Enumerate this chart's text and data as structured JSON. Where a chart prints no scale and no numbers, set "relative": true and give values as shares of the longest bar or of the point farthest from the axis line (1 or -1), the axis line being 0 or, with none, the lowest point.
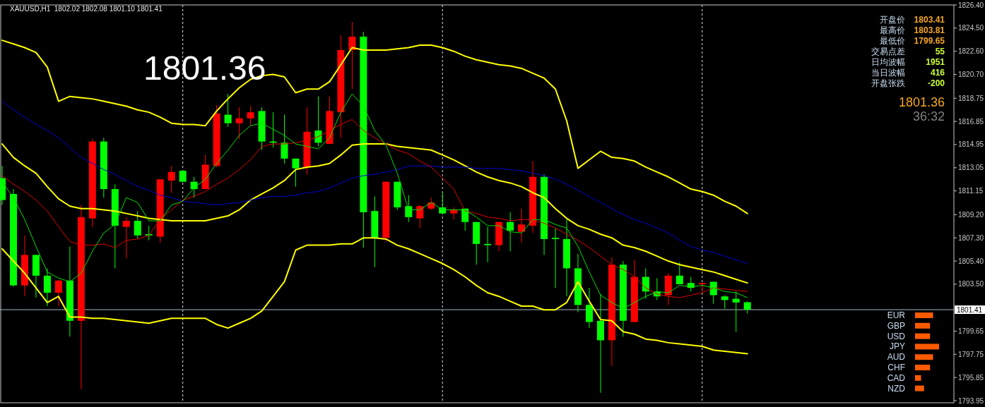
{
  "chart_data": [
    {
      "type": "candlestick",
      "title": "XAUUSD,H1  1802.02 1802.08 1801.10 1801.41",
      "categories": [
        null,
        null,
        null,
        null,
        null,
        null,
        null,
        null,
        null,
        null,
        null,
        null,
        null,
        null,
        null,
        null,
        null,
        null,
        null,
        null,
        null,
        null,
        null,
        null,
        null,
        null,
        null,
        null,
        null,
        null,
        null,
        null,
        null,
        null,
        null,
        null,
        null,
        null,
        null,
        null,
        null,
        null,
        null,
        null,
        null,
        null,
        null,
        null,
        null,
        null,
        null,
        null,
        null,
        null,
        null,
        null,
        null,
        null,
        null,
        null,
        null,
        null,
        null,
        null,
        null,
        null,
        null
      ],
      "ohlc": [
        [
          1812.2,
          1813.2,
          1810.0,
          1810.4
        ],
        [
          1810.9,
          1811.3,
          1803.3,
          1803.4
        ],
        [
          1803.4,
          1807.5,
          1802.5,
          1805.9
        ],
        [
          1805.9,
          1805.9,
          1802.4,
          1804.2
        ],
        [
          1804.2,
          1804.8,
          1801.7,
          1802.8
        ],
        [
          1802.8,
          1803.8,
          1801.7,
          1803.8
        ],
        [
          1803.8,
          1806.6,
          1799.2,
          1800.5
        ],
        [
          1800.5,
          1810.0,
          1794.9,
          1809.0
        ],
        [
          1808.9,
          1815.4,
          1808.2,
          1815.2
        ],
        [
          1815.2,
          1815.5,
          1810.6,
          1811.3
        ],
        [
          1811.3,
          1811.7,
          1804.8,
          1808.3
        ],
        [
          1808.2,
          1809.0,
          1805.6,
          1808.7
        ],
        [
          1808.7,
          1809.5,
          1807.2,
          1807.5
        ],
        [
          1807.6,
          1808.3,
          1807.1,
          1807.5
        ],
        [
          1807.4,
          1812.1,
          1806.9,
          1812.1
        ],
        [
          1812.0,
          1813.2,
          1811.0,
          1812.7
        ],
        [
          1812.8,
          1812.8,
          1811.9,
          1811.9
        ],
        [
          1811.9,
          1812.3,
          1810.6,
          1811.3
        ],
        [
          1811.3,
          1814.1,
          1811.3,
          1813.3
        ],
        [
          1813.2,
          1818.2,
          1813.1,
          1817.5
        ],
        [
          1817.4,
          1819.1,
          1816.4,
          1816.7
        ],
        [
          1816.7,
          1818.0,
          1815.4,
          1817.1
        ],
        [
          1817.1,
          1818.1,
          1816.5,
          1817.6
        ],
        [
          1817.7,
          1818.0,
          1814.5,
          1815.2
        ],
        [
          1815.2,
          1817.6,
          1814.7,
          1815.1
        ],
        [
          1815.1,
          1817.4,
          1813.4,
          1813.8
        ],
        [
          1813.8,
          1813.8,
          1811.5,
          1813.0
        ],
        [
          1813.1,
          1818.0,
          1812.5,
          1816.0
        ],
        [
          1816.1,
          1818.9,
          1814.8,
          1815.1
        ],
        [
          1815.0,
          1818.9,
          1815.0,
          1817.7
        ],
        [
          1817.6,
          1823.9,
          1815.5,
          1822.7
        ],
        [
          1822.7,
          1825.0,
          1819.5,
          1823.8
        ],
        [
          1823.8,
          1824.2,
          1806.5,
          1809.4
        ],
        [
          1809.5,
          1810.7,
          1804.9,
          1807.3
        ],
        [
          1807.3,
          1811.9,
          1807.0,
          1811.9
        ],
        [
          1811.9,
          1811.9,
          1809.6,
          1809.8
        ],
        [
          1809.9,
          1810.8,
          1808.6,
          1809.0
        ],
        [
          1808.9,
          1810.0,
          1808.1,
          1809.9
        ],
        [
          1809.7,
          1810.6,
          1809.6,
          1810.2
        ],
        [
          1809.8,
          1811.0,
          1809.3,
          1809.3
        ],
        [
          1809.3,
          1809.8,
          1808.8,
          1809.6
        ],
        [
          1809.7,
          1809.7,
          1807.9,
          1808.6
        ],
        [
          1808.6,
          1808.6,
          1805.1,
          1806.8
        ],
        [
          1806.8,
          1808.2,
          1805.3,
          1806.7
        ],
        [
          1806.7,
          1808.6,
          1806.2,
          1808.6
        ],
        [
          1808.6,
          1809.4,
          1806.2,
          1807.9
        ],
        [
          1807.8,
          1809.7,
          1806.9,
          1808.4
        ],
        [
          1808.3,
          1813.6,
          1807.7,
          1812.3
        ],
        [
          1812.3,
          1812.5,
          1805.9,
          1807.2
        ],
        [
          1807.3,
          1808.1,
          1803.2,
          1807.2
        ],
        [
          1807.2,
          1808.8,
          1802.5,
          1804.8
        ],
        [
          1804.8,
          1806.0,
          1801.2,
          1801.8
        ],
        [
          1801.8,
          1803.2,
          1799.9,
          1800.4
        ],
        [
          1800.5,
          1802.7,
          1794.6,
          1798.9
        ],
        [
          1798.9,
          1805.7,
          1796.8,
          1805.1
        ],
        [
          1805.1,
          1805.4,
          1799.2,
          1800.5
        ],
        [
          1800.4,
          1805.5,
          1800.4,
          1804.1
        ],
        [
          1804.1,
          1804.8,
          1802.3,
          1802.9
        ],
        [
          1802.9,
          1804.0,
          1802.2,
          1802.5
        ],
        [
          1802.6,
          1804.4,
          1801.8,
          1804.2
        ],
        [
          1804.2,
          1805.3,
          1803.5,
          1803.5
        ],
        [
          1803.6,
          1804.1,
          1802.9,
          1803.2
        ],
        [
          1803.5,
          1803.6,
          1802.9,
          1803.6
        ],
        [
          1803.7,
          1803.7,
          1801.9,
          1802.6
        ],
        [
          1802.5,
          1802.6,
          1801.5,
          1802.2
        ],
        [
          1802.3,
          1802.9,
          1799.6,
          1802.0
        ],
        [
          1802.02,
          1802.08,
          1801.1,
          1801.41
        ]
      ],
      "colors": [
        "#00ff00",
        "#00ff00",
        "#ff0000",
        "#00ff00",
        "#00ff00",
        "#ff0000",
        "#00ff00",
        "#ff0000",
        "#ff0000",
        "#00ff00",
        "#00ff00",
        "#ff0000",
        "#00ff00",
        "#00ff00",
        "#ff0000",
        "#ff0000",
        "#00ff00",
        "#00ff00",
        "#ff0000",
        "#ff0000",
        "#00ff00",
        "#ff0000",
        "#ff0000",
        "#00ff00",
        "#00ff00",
        "#00ff00",
        "#00ff00",
        "#ff0000",
        "#00ff00",
        "#ff0000",
        "#ff0000",
        "#ff0000",
        "#00ff00",
        "#00ff00",
        "#ff0000",
        "#00ff00",
        "#00ff00",
        "#ff0000",
        "#ff0000",
        "#00ff00",
        "#ff0000",
        "#00ff00",
        "#00ff00",
        "#00ff00",
        "#ff0000",
        "#00ff00",
        "#ff0000",
        "#ff0000",
        "#00ff00",
        "#00ff00",
        "#00ff00",
        "#00ff00",
        "#00ff00",
        "#00ff00",
        "#ff0000",
        "#00ff00",
        "#ff0000",
        "#00ff00",
        "#00ff00",
        "#ff0000",
        "#00ff00",
        "#00ff00",
        "#ff0000",
        "#00ff00",
        "#00ff00",
        "#00ff00",
        "#00ff00"
      ],
      "series": [
        {
          "type": "line",
          "color": "#ffff00",
          "values": [
            1823.5,
            1823.2,
            1822.9,
            1822.5,
            1821.3,
            1818.5,
            1818.9,
            1818.8,
            1818.7,
            1818.5,
            1818.3,
            1818.1,
            1817.8,
            1817.6,
            1817.2,
            1816.7,
            1816.6,
            1816.6,
            1816.5,
            1817.7,
            1818.7,
            1819.6,
            1820.3,
            1820.6,
            1820.7,
            1820.5,
            1819.2,
            1819.5,
            1819.5,
            1820.1,
            1821.5,
            1822.9,
            1822.7,
            1822.7,
            1822.7,
            1822.8,
            1822.9,
            1823.1,
            1823.1,
            1822.9,
            1822.6,
            1822.2,
            1821.9,
            1821.7,
            1821.5,
            1821.4,
            1821.2,
            1820.8,
            1820.4,
            1819.5,
            1816.9,
            1813.0,
            1813.7,
            1814.4,
            1813.9,
            1813.8,
            1813.6,
            1813.1,
            1812.7,
            1812.3,
            1811.8,
            1811.3,
            1811.1,
            1810.8,
            1810.3,
            1809.9,
            1809.3
          ]
        },
        {
          "type": "line",
          "color": "#ffff00",
          "values": [
            1815.0,
            1813.9,
            1813.2,
            1812.6,
            1811.5,
            1810.5,
            1809.9,
            1809.7,
            1809.7,
            1809.6,
            1809.5,
            1809.3,
            1809.1,
            1808.9,
            1808.8,
            1808.7,
            1808.7,
            1808.7,
            1808.7,
            1808.9,
            1809.1,
            1809.6,
            1810.4,
            1810.9,
            1811.4,
            1812.0,
            1812.9,
            1813.1,
            1813.2,
            1813.4,
            1814.1,
            1814.9,
            1815.0,
            1815.0,
            1815.0,
            1814.8,
            1814.7,
            1814.6,
            1814.5,
            1814.1,
            1813.7,
            1813.2,
            1812.7,
            1812.3,
            1812.0,
            1811.8,
            1811.5,
            1811.0,
            1810.6,
            1809.7,
            1808.9,
            1808.3,
            1808.0,
            1807.6,
            1807.3,
            1806.7,
            1806.5,
            1806.2,
            1805.8,
            1805.4,
            1805.1,
            1804.9,
            1804.7,
            1804.5,
            1804.2,
            1803.9,
            1803.6
          ]
        },
        {
          "type": "line",
          "color": "#ffff00",
          "values": [
            1806.4,
            1805.4,
            1804.4,
            1803.2,
            1802.0,
            1802.5,
            1800.8,
            1800.8,
            1800.7,
            1800.7,
            1800.6,
            1800.5,
            1800.4,
            1800.3,
            1800.5,
            1800.7,
            1800.7,
            1800.7,
            1800.7,
            1800.2,
            1799.9,
            1800.3,
            1800.7,
            1801.3,
            1802.5,
            1803.7,
            1806.3,
            1806.7,
            1806.7,
            1806.7,
            1806.8,
            1806.8,
            1807.3,
            1807.3,
            1807.2,
            1806.7,
            1806.4,
            1806.0,
            1805.6,
            1805.2,
            1804.7,
            1804.1,
            1803.4,
            1802.8,
            1802.5,
            1802.1,
            1801.7,
            1801.7,
            1801.4,
            1801.4,
            1802.0,
            1803.7,
            1802.1,
            1800.6,
            1800.5,
            1799.6,
            1799.4,
            1799.0,
            1798.9,
            1798.7,
            1798.6,
            1798.5,
            1798.4,
            1798.1,
            1798.0,
            1797.9,
            1797.8
          ]
        },
        {
          "type": "line",
          "color": "#0000d0",
          "values": [
            1818.5,
            1817.8,
            1817.2,
            1816.6,
            1816.1,
            1815.5,
            1814.7,
            1813.9,
            1813.4,
            1812.9,
            1812.5,
            1812.0,
            1811.5,
            1811.2,
            1810.8,
            1810.6,
            1810.3,
            1810.2,
            1810.1,
            1810.0,
            1810.1,
            1810.2,
            1810.4,
            1810.6,
            1810.7,
            1810.7,
            1810.8,
            1811.0,
            1811.1,
            1811.4,
            1811.8,
            1812.2,
            1812.4,
            1812.5,
            1812.7,
            1812.9,
            1813.2,
            1813.2,
            1813.2,
            1813.1,
            1813.1,
            1813.1,
            1813.0,
            1813.0,
            1813.0,
            1812.9,
            1812.8,
            1812.6,
            1812.4,
            1812.1,
            1811.7,
            1811.2,
            1810.7,
            1810.2,
            1809.7,
            1809.2,
            1808.8,
            1808.5,
            1808.1,
            1807.7,
            1807.1,
            1806.6,
            1806.3,
            1806.1,
            1805.8,
            1805.5,
            1805.2
          ]
        },
        {
          "type": "line",
          "color": "#e00000",
          "values": [
            1812.4,
            1811.7,
            1811.1,
            1810.4,
            1809.5,
            1808.2,
            1807.0,
            1806.7,
            1806.7,
            1806.8,
            1806.5,
            1807.1,
            1807.2,
            1807.5,
            1808.8,
            1809.6,
            1810.4,
            1810.7,
            1811.1,
            1811.7,
            1812.2,
            1812.9,
            1813.7,
            1814.8,
            1815.0,
            1815.0,
            1815.1,
            1815.3,
            1815.6,
            1816.1,
            1816.6,
            1817.0,
            1816.1,
            1815.5,
            1815.0,
            1814.5,
            1814.2,
            1813.6,
            1813.1,
            1812.2,
            1811.3,
            1809.5,
            1809.3,
            1809.0,
            1808.9,
            1808.7,
            1808.8,
            1808.8,
            1808.5,
            1808.1,
            1807.6,
            1807.1,
            1806.5,
            1805.8,
            1805.1,
            1804.7,
            1804.1,
            1803.2,
            1802.7,
            1802.5,
            1802.4,
            1802.6,
            1802.8,
            1803.2,
            1803.1,
            1803.0,
            1802.9
          ]
        },
        {
          "type": "line",
          "color": "#00e000",
          "values": [
            1811.9,
            1810.6,
            1808.8,
            1806.6,
            1804.5,
            1804.0,
            1803.7,
            1804.4,
            1806.2,
            1807.7,
            1808.4,
            1810.6,
            1810.2,
            1808.7,
            1808.7,
            1810.0,
            1810.3,
            1811.4,
            1812.1,
            1813.4,
            1814.5,
            1815.7,
            1816.5,
            1816.7,
            1816.2,
            1815.7,
            1815.0,
            1814.8,
            1814.6,
            1815.5,
            1817.6,
            1819.1,
            1818.1,
            1816.1,
            1814.9,
            1812.6,
            1809.6,
            1809.6,
            1810.2,
            1809.6,
            1809.6,
            1809.6,
            1809.0,
            1808.3,
            1808.3,
            1807.8,
            1807.7,
            1808.8,
            1808.8,
            1808.4,
            1808.1,
            1806.6,
            1804.5,
            1802.6,
            1802.0,
            1801.5,
            1802.0,
            1802.5,
            1802.9,
            1802.8,
            1803.4,
            1803.3,
            1803.4,
            1803.2,
            1802.9,
            1802.8,
            1802.4
          ]
        }
      ],
      "ylim": [
        1793.95,
        1826.4
      ],
      "yticks": [
        {
          "value": 1793.95,
          "label": "1793.95"
        },
        {
          "value": 1795.85,
          "label": "1795.85"
        },
        {
          "value": 1797.75,
          "label": "1797.75"
        },
        {
          "value": 1799.65,
          "label": "1799.65"
        },
        {
          "value": 1803.5,
          "label": "1803.50"
        },
        {
          "value": 1805.4,
          "label": "1805.40"
        },
        {
          "value": 1807.3,
          "label": "1807.30"
        },
        {
          "value": 1809.2,
          "label": "1809.20"
        },
        {
          "value": 1811.15,
          "label": "1811.15"
        },
        {
          "value": 1813.05,
          "label": "1813.05"
        },
        {
          "value": 1814.95,
          "label": "1814.95"
        },
        {
          "value": 1816.85,
          "label": "1816.85"
        },
        {
          "value": 1818.75,
          "label": "1818.75"
        },
        {
          "value": 1820.7,
          "label": "1820.70"
        },
        {
          "value": 1822.6,
          "label": "1822.60"
        },
        {
          "value": 1824.5,
          "label": "1824.50"
        },
        {
          "value": 1826.4,
          "label": "1826.40"
        }
      ],
      "ref_lines": [
        {
          "axis": "y",
          "value": 1801.41,
          "label": "1801.41",
          "color": "#a8b8c8"
        }
      ],
      "annotations": [
        "1801.36"
      ],
      "tick_labels": "y",
      "grid": "x"
    },
    {
      "type": "other",
      "annotations": [
        "开盘价",
        "1803.41",
        "最高价",
        "1803.81",
        "最低价",
        "1799.65",
        "交易点差",
        "55",
        "日均波幅",
        "1951",
        "当日波幅",
        "416",
        "开盘张跌",
        "-200",
        "1801.36",
        "36:32"
      ]
    },
    {
      "type": "bar",
      "orientation": "horizontal",
      "relative": true,
      "color": "#ff5a00",
      "categories": [
        "EUR",
        "GBP",
        "USD",
        "JPY",
        "AUD",
        "CHF",
        "CAD",
        "NZD"
      ],
      "values": [
        0.75,
        0.625,
        0.625,
        1,
        0.75,
        0.625,
        0.25,
        0.375
      ]
    }
  ]
}
